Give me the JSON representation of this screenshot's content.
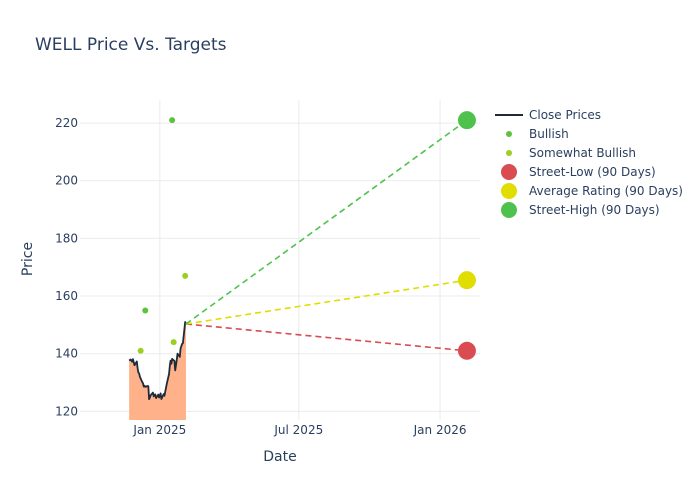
{
  "chart_data": {
    "type": "line",
    "title": "WELL Price Vs. Targets",
    "xlabel": "Date",
    "ylabel": "Price",
    "xlim": [
      "2024-09-19",
      "2026-02-22"
    ],
    "ylim": [
      117,
      228
    ],
    "x_ticks": [
      {
        "date": "2025-01-01",
        "label": "Jan 2025"
      },
      {
        "date": "2025-07-01",
        "label": "Jul 2025"
      },
      {
        "date": "2026-01-01",
        "label": "Jan 2026"
      }
    ],
    "y_ticks": [
      120,
      140,
      160,
      180,
      200,
      220
    ],
    "grid": true,
    "legend_position": "right",
    "series": [
      {
        "name": "Close Prices",
        "kind": "line",
        "color": "#1f2a3a",
        "fill_color": "#ffb28a",
        "points": [
          [
            "2024-11-22",
            137.6
          ],
          [
            "2024-11-24",
            138.0
          ],
          [
            "2024-11-26",
            137.2
          ],
          [
            "2024-11-27",
            138.1
          ],
          [
            "2024-11-29",
            136.0
          ],
          [
            "2024-12-02",
            137.3
          ],
          [
            "2024-12-03",
            135.0
          ],
          [
            "2024-12-04",
            133.5
          ],
          [
            "2024-12-05",
            133.2
          ],
          [
            "2024-12-06",
            132.0
          ],
          [
            "2024-12-09",
            130.2
          ],
          [
            "2024-12-10",
            129.8
          ],
          [
            "2024-12-11",
            128.6
          ],
          [
            "2024-12-12",
            128.9
          ],
          [
            "2024-12-13",
            128.5
          ],
          [
            "2024-12-16",
            128.8
          ],
          [
            "2024-12-17",
            128.7
          ],
          [
            "2024-12-18",
            124.2
          ],
          [
            "2024-12-19",
            124.8
          ],
          [
            "2024-12-20",
            125.6
          ],
          [
            "2024-12-23",
            126.5
          ],
          [
            "2024-12-24",
            125.2
          ],
          [
            "2024-12-26",
            125.9
          ],
          [
            "2024-12-27",
            124.6
          ],
          [
            "2024-12-30",
            125.8
          ],
          [
            "2024-12-31",
            124.8
          ],
          [
            "2025-01-02",
            126.2
          ],
          [
            "2025-01-03",
            124.3
          ],
          [
            "2025-01-06",
            126.0
          ],
          [
            "2025-01-07",
            125.4
          ],
          [
            "2025-01-08",
            126.8
          ],
          [
            "2025-01-10",
            129.5
          ],
          [
            "2025-01-13",
            133.0
          ],
          [
            "2025-01-14",
            135.8
          ],
          [
            "2025-01-15",
            137.6
          ],
          [
            "2025-01-16",
            136.5
          ],
          [
            "2025-01-17",
            138.2
          ],
          [
            "2025-01-20",
            137.5
          ],
          [
            "2025-01-21",
            134.2
          ],
          [
            "2025-01-22",
            136.0
          ],
          [
            "2025-01-23",
            137.8
          ],
          [
            "2025-01-24",
            140.0
          ],
          [
            "2025-01-27",
            138.9
          ],
          [
            "2025-01-28",
            141.8
          ],
          [
            "2025-01-29",
            142.6
          ],
          [
            "2025-01-30",
            143.4
          ],
          [
            "2025-01-31",
            143.6
          ],
          [
            "2025-02-03",
            151.0
          ],
          [
            "2025-02-04",
            150.3
          ]
        ]
      },
      {
        "name": "Bullish",
        "kind": "markers",
        "color": "#5cc33a",
        "points": [
          [
            "2024-12-13",
            155
          ],
          [
            "2025-01-17",
            221
          ]
        ]
      },
      {
        "name": "Somewhat Bullish",
        "kind": "markers",
        "color": "#9bcf22",
        "points": [
          [
            "2024-12-07",
            141
          ],
          [
            "2025-01-19",
            144
          ],
          [
            "2025-02-03",
            167
          ]
        ]
      },
      {
        "name": "Street-Low (90 Days)",
        "kind": "target",
        "color": "#d84c52",
        "from": [
          "2025-02-04",
          150.3
        ],
        "to": [
          "2026-02-05",
          141
        ]
      },
      {
        "name": "Average Rating (90 Days)",
        "kind": "target",
        "color": "#e0dd00",
        "from": [
          "2025-02-04",
          150.3
        ],
        "to": [
          "2026-02-05",
          165.5
        ]
      },
      {
        "name": "Street-High (90 Days)",
        "kind": "target",
        "color": "#4fc24e",
        "from": [
          "2025-02-04",
          150.3
        ],
        "to": [
          "2026-02-05",
          221
        ]
      }
    ]
  }
}
